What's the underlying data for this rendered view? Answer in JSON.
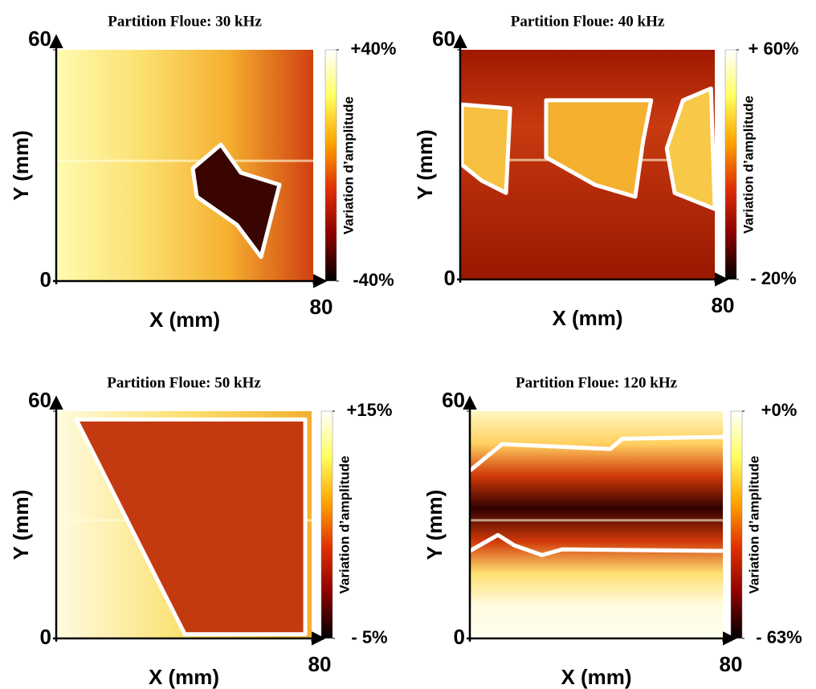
{
  "chart_data": [
    {
      "type": "heatmap",
      "title": "Partition Floue: 30 kHz",
      "xlabel": "X (mm)",
      "ylabel": "Y (mm)",
      "xlim": [
        0,
        80
      ],
      "ylim": [
        0,
        60
      ],
      "xticks": [
        80
      ],
      "yticks": [
        0,
        60
      ],
      "colorbar_label": "Variation d’amplitude",
      "clim": [
        -40,
        40
      ],
      "cticks": [
        {
          "value": 40,
          "label": "+40%"
        },
        {
          "value": -40,
          "label": "-40%"
        }
      ],
      "colormap": [
        "#000000",
        "#8b0000",
        "#e03000",
        "#ffa500",
        "#ffff60",
        "#ffffff"
      ],
      "background": [
        "#fffbb0",
        "#fbe070",
        "#f5b030",
        "#d04010"
      ],
      "background_direction": "horizontal",
      "outlines": [
        {
          "x": [
            51.25,
            57.5,
            69.5,
            63.75,
            56.25,
            43.75,
            42.5
          ],
          "y": [
            35.4,
            28.1,
            25,
            6.25,
            14.6,
            21.9,
            29.2
          ],
          "closed": true,
          "fill": "#3a0500"
        }
      ]
    },
    {
      "type": "heatmap",
      "title": "Partition Floue: 40 kHz",
      "xlabel": "X (mm)",
      "ylabel": "Y (mm)",
      "xlim": [
        0,
        80
      ],
      "ylim": [
        0,
        60
      ],
      "xticks": [
        80
      ],
      "yticks": [
        0,
        60
      ],
      "colorbar_label": "Variation d’amplitude",
      "clim": [
        -20,
        60
      ],
      "cticks": [
        {
          "value": 60,
          "label": "+ 60%"
        },
        {
          "value": -20,
          "label": "- 20%"
        }
      ],
      "colormap": [
        "#000000",
        "#8b0000",
        "#e03000",
        "#ffa500",
        "#ffff60",
        "#ffffff"
      ],
      "background": [
        "#a01800",
        "#c83a10",
        "#b02808",
        "#9a1800"
      ],
      "background_direction": "vertical",
      "outlines": [
        {
          "x": [
            0.5,
            15.7,
            14.4,
            6.8,
            0.5
          ],
          "y": [
            45.7,
            44.7,
            22.6,
            25.8,
            30
          ],
          "closed": true,
          "fill": "#f8c040"
        },
        {
          "x": [
            27,
            60,
            57.5,
            55,
            42.4,
            27
          ],
          "y": [
            46.8,
            46.8,
            36.3,
            21.6,
            24.7,
            31.9
          ],
          "closed": true,
          "fill": "#f5b030"
        },
        {
          "x": [
            70,
            78.8,
            80,
            67.4,
            64.9
          ],
          "y": [
            46.8,
            49.9,
            18.4,
            22.6,
            34.2
          ],
          "closed": true,
          "fill": "#f8c848"
        }
      ]
    },
    {
      "type": "heatmap",
      "title": "Partition Floue: 50 kHz",
      "xlabel": "X (mm)",
      "ylabel": "Y (mm)",
      "xlim": [
        0,
        80
      ],
      "ylim": [
        0,
        60
      ],
      "xticks": [
        80
      ],
      "yticks": [
        0,
        60
      ],
      "colorbar_label": "Variation d’amplitude",
      "clim": [
        -5,
        15
      ],
      "cticks": [
        {
          "value": 15,
          "label": "+15%"
        },
        {
          "value": -5,
          "label": "- 5%"
        }
      ],
      "colormap": [
        "#000000",
        "#8b0000",
        "#e03000",
        "#ffa500",
        "#ffff60",
        "#ffffff"
      ],
      "background": [
        "#fffce0",
        "#fbe070",
        "#f5b030"
      ],
      "background_direction": "horizontal",
      "outlines": [
        {
          "x": [
            6.3,
            78,
            78,
            40.3
          ],
          "y": [
            57.8,
            57.8,
            1.1,
            1.1
          ],
          "closed": true,
          "fill": "#c43a10"
        }
      ]
    },
    {
      "type": "heatmap",
      "title": "Partition Floue: 120 kHz",
      "xlabel": "X (mm)",
      "ylabel": "Y (mm)",
      "xlim": [
        0,
        80
      ],
      "ylim": [
        0,
        60
      ],
      "xticks": [
        80
      ],
      "yticks": [
        0,
        60
      ],
      "colorbar_label": "Variation d’amplitude",
      "clim": [
        -63,
        0
      ],
      "cticks": [
        {
          "value": 0,
          "label": "+0%"
        },
        {
          "value": -63,
          "label": "- 63%"
        }
      ],
      "colormap": [
        "#000000",
        "#8b0000",
        "#e03000",
        "#ffa500",
        "#ffff60",
        "#ffffff"
      ],
      "background": [
        "#fff8c0",
        "#ffd060",
        "#d03808",
        "#300000",
        "#d03808",
        "#ffe070",
        "#fffbe0",
        "#fffff0"
      ],
      "background_direction": "vertical",
      "outlines": [
        {
          "x": [
            0,
            10.2,
            44.4,
            48.2,
            80
          ],
          "y": [
            44.3,
            51.3,
            50.0,
            52.7,
            53.2
          ],
          "closed": false,
          "fill": "none"
        },
        {
          "x": [
            0,
            8.9,
            14,
            22.8,
            29.2,
            80
          ],
          "y": [
            23.1,
            27.3,
            24.6,
            22,
            23.5,
            23.1
          ],
          "closed": false,
          "fill": "none"
        }
      ]
    }
  ]
}
